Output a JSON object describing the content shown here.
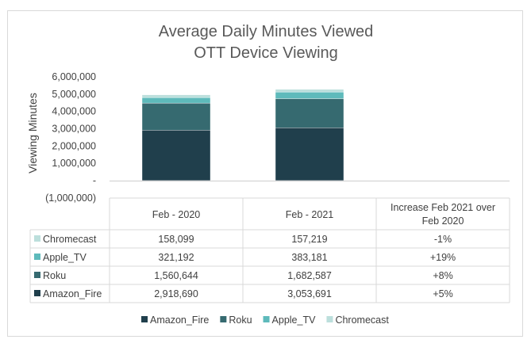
{
  "chart_data": {
    "type": "bar",
    "stacked": true,
    "title": "Average Daily Minutes Viewed",
    "subtitle": "OTT Device Viewing",
    "xlabel": "",
    "ylabel": "Viewing Minutes",
    "ylim": [
      -1000000,
      6000000
    ],
    "yticks": [
      6000000,
      5000000,
      4000000,
      3000000,
      2000000,
      1000000,
      0,
      -1000000
    ],
    "ytick_labels": [
      "6,000,000",
      "5,000,000",
      "4,000,000",
      "3,000,000",
      "2,000,000",
      "1,000,000",
      "-",
      "(1,000,000)"
    ],
    "grid": false,
    "legend_position": "bottom",
    "categories": [
      "Feb - 2020",
      "Feb - 2021",
      "Increase Feb 2021 over Feb 2020"
    ],
    "series": [
      {
        "name": "Amazon_Fire",
        "color": "#203f4c",
        "values": [
          2918690,
          3053691
        ],
        "increase": "+5%"
      },
      {
        "name": "Roku",
        "color": "#366a70",
        "values": [
          1560644,
          1682587
        ],
        "increase": "+8%"
      },
      {
        "name": "Apple_TV",
        "color": "#5ebabb",
        "values": [
          321192,
          383181
        ],
        "increase": "+19%"
      },
      {
        "name": "Chromecast",
        "color": "#bcdfdc",
        "values": [
          158099,
          157219
        ],
        "increase": "-1%"
      }
    ],
    "data_table": {
      "headers": [
        "Feb - 2020",
        "Feb - 2021",
        "Increase Feb 2021 over Feb 2020"
      ],
      "rows": [
        {
          "label": "Chromecast",
          "color": "#bcdfdc",
          "cells": [
            "158,099",
            "157,219",
            "-1%"
          ]
        },
        {
          "label": "Apple_TV",
          "color": "#5ebabb",
          "cells": [
            "321,192",
            "383,181",
            "+19%"
          ]
        },
        {
          "label": "Roku",
          "color": "#366a70",
          "cells": [
            "1,560,644",
            "1,682,587",
            "+8%"
          ]
        },
        {
          "label": "Amazon_Fire",
          "color": "#203f4c",
          "cells": [
            "2,918,690",
            "3,053,691",
            "+5%"
          ]
        }
      ]
    }
  }
}
